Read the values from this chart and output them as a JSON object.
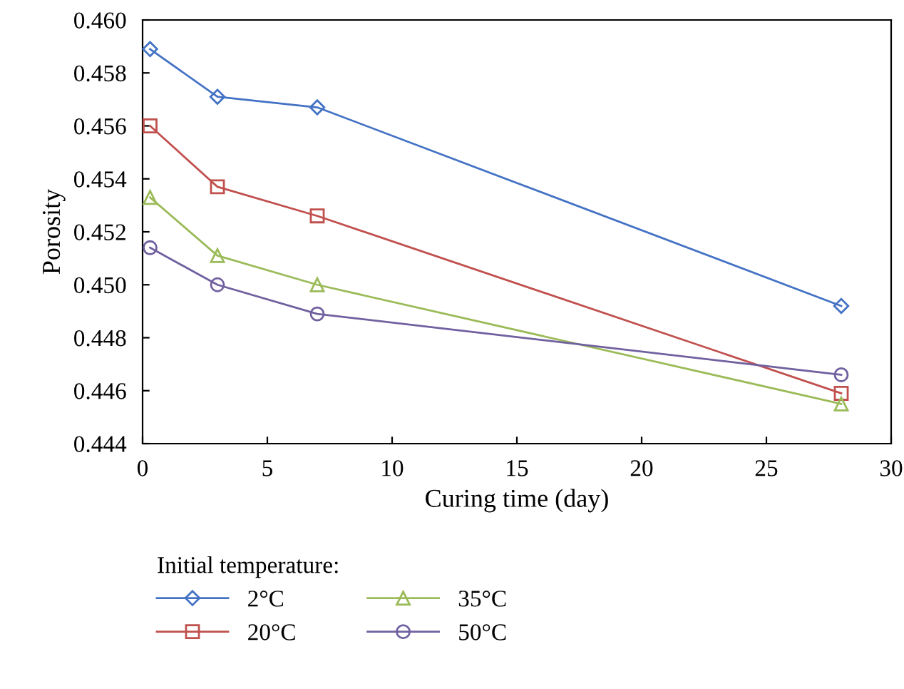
{
  "chart_data": {
    "type": "line",
    "xlabel": "Curing time (day)",
    "ylabel": "Porosity",
    "legend_title": "Initial temperature:",
    "x": [
      0.3,
      3,
      7,
      28
    ],
    "series": [
      {
        "name": "2°C",
        "color": "#4472c4",
        "marker": "diamond",
        "values": [
          0.4589,
          0.4571,
          0.4567,
          0.4492
        ]
      },
      {
        "name": "20°C",
        "color": "#c0504d",
        "marker": "square",
        "values": [
          0.456,
          0.4537,
          0.4526,
          0.4459
        ]
      },
      {
        "name": "35°C",
        "color": "#9bbb59",
        "marker": "triangle",
        "values": [
          0.4533,
          0.4511,
          0.45,
          0.4455
        ]
      },
      {
        "name": "50°C",
        "color": "#7060a0",
        "marker": "circle",
        "values": [
          0.4514,
          0.45,
          0.4489,
          0.4466
        ]
      }
    ],
    "xlim": [
      0,
      30
    ],
    "xticks": [
      0,
      5,
      10,
      15,
      20,
      25,
      30
    ],
    "ylim": [
      0.444,
      0.46
    ],
    "yticks": [
      {
        "value": 0.444,
        "label": "0.444"
      },
      {
        "value": 0.446,
        "label": "0.446"
      },
      {
        "value": 0.448,
        "label": "0.448"
      },
      {
        "value": 0.45,
        "label": "0.450"
      },
      {
        "value": 0.452,
        "label": "0.452"
      },
      {
        "value": 0.454,
        "label": "0.454"
      },
      {
        "value": 0.456,
        "label": "0.456"
      },
      {
        "value": 0.458,
        "label": "0.458"
      },
      {
        "value": 0.46,
        "label": "0.460"
      }
    ],
    "grid": false,
    "legend": "bottom",
    "line_style": "solid"
  }
}
